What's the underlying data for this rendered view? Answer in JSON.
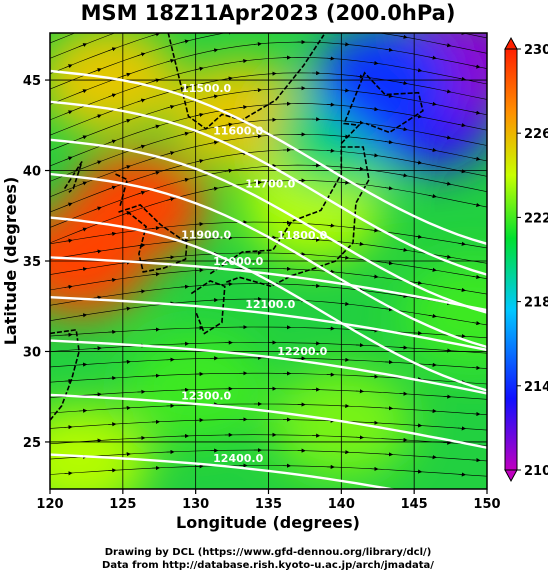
{
  "title": "MSM 18Z11Apr2023 (200.0hPa)",
  "x_axis": {
    "label": "Longitude (degrees)",
    "range": [
      120,
      150
    ],
    "ticks": [
      "120",
      "125",
      "130",
      "135",
      "140",
      "145",
      "150"
    ]
  },
  "y_axis": {
    "label": "Latitude  (degrees)",
    "range": [
      22.4,
      47.6
    ],
    "ticks": [
      "25",
      "30",
      "35",
      "40",
      "45"
    ]
  },
  "colorbar": {
    "min": 210,
    "max": 230,
    "ticks": [
      "210",
      "214",
      "218",
      "222",
      "226",
      "230"
    ],
    "colors": [
      "#c000c0",
      "#1010ff",
      "#00c0ff",
      "#00e030",
      "#c8ff00",
      "#ff9000",
      "#ff2000"
    ]
  },
  "contour_labels": [
    "11500.0",
    "11600.0",
    "11700.0",
    "11800.0",
    "11900.0",
    "12000.0",
    "12100.0",
    "12200.0",
    "12300.0",
    "12400.0"
  ],
  "credits": {
    "line1": "Drawing by DCL (https://www.gfd-dennou.org/library/dcl/)",
    "line2": "Data from http://database.rish.kyoto-u.ac.jp/arch/jmadata/"
  },
  "chart_data": {
    "type": "heatmap",
    "title": "MSM 18Z11Apr2023 (200.0hPa)",
    "xlabel": "Longitude (degrees)",
    "ylabel": "Latitude  (degrees)",
    "xlim": [
      120,
      150
    ],
    "ylim": [
      22.4,
      47.6
    ],
    "colorbar_range": [
      210,
      230
    ],
    "field": "shaded temperature with white geopotential height contours and black wind streamlines",
    "contour_levels": [
      11500,
      11600,
      11700,
      11800,
      11900,
      12000,
      12100,
      12200,
      12300,
      12400
    ],
    "temperature_regions": [
      {
        "lon": 126,
        "lat": 38,
        "value": 229
      },
      {
        "lon": 122,
        "lat": 35,
        "value": 229
      },
      {
        "lon": 124,
        "lat": 45,
        "value": 225
      },
      {
        "lon": 133,
        "lat": 43,
        "value": 225
      },
      {
        "lon": 138,
        "lat": 38,
        "value": 223
      },
      {
        "lon": 140,
        "lat": 42,
        "value": 219
      },
      {
        "lon": 146,
        "lat": 43,
        "value": 213
      },
      {
        "lon": 148,
        "lat": 46,
        "value": 211
      },
      {
        "lon": 143,
        "lat": 45,
        "value": 214
      },
      {
        "lon": 130,
        "lat": 28,
        "value": 221
      },
      {
        "lon": 140,
        "lat": 26,
        "value": 222
      },
      {
        "lon": 122,
        "lat": 24,
        "value": 223
      },
      {
        "lon": 149,
        "lat": 32,
        "value": 221
      }
    ]
  }
}
